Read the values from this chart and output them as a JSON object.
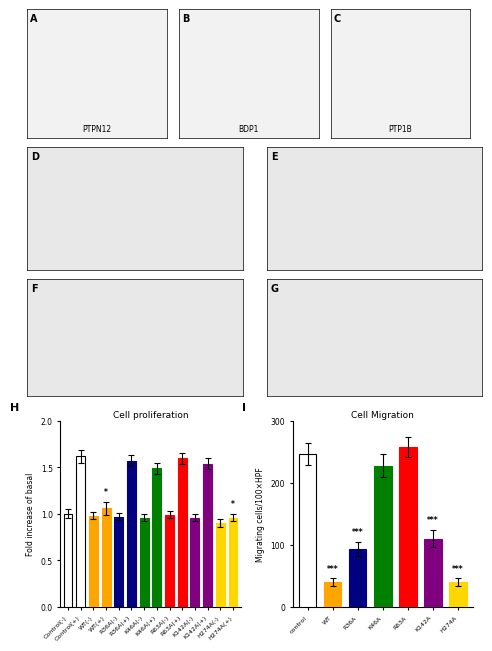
{
  "panel_H": {
    "title": "Cell proliferation",
    "ylabel": "Fold increase of basal",
    "ylim": [
      0,
      2.0
    ],
    "yticks": [
      0.0,
      0.5,
      1.0,
      1.5,
      2.0
    ],
    "categories": [
      "Control(-)",
      "Control(+)",
      "WT(-)",
      "WT(+)",
      "R36A(-)",
      "R36A(+)",
      "K46A(-)",
      "K46A(+)",
      "R63A(-)",
      "R63A(+)",
      "K142A(-)",
      "K142A(+)",
      "H274A(-)",
      "H274A(+)"
    ],
    "values": [
      1.0,
      1.62,
      0.98,
      1.06,
      0.97,
      1.57,
      0.96,
      1.49,
      0.99,
      1.6,
      0.96,
      1.54,
      0.9,
      0.96
    ],
    "errors": [
      0.05,
      0.07,
      0.04,
      0.07,
      0.04,
      0.06,
      0.04,
      0.06,
      0.04,
      0.06,
      0.04,
      0.06,
      0.04,
      0.04
    ],
    "colors": [
      "white",
      "white",
      "orange",
      "orange",
      "navy",
      "navy",
      "green",
      "green",
      "red",
      "red",
      "purple",
      "purple",
      "gold",
      "gold"
    ],
    "edge_colors": [
      "black",
      "black",
      "orange",
      "orange",
      "navy",
      "navy",
      "green",
      "green",
      "red",
      "red",
      "purple",
      "purple",
      "gold",
      "gold"
    ],
    "significance": [
      "",
      "",
      "",
      "*",
      "",
      "",
      "",
      "",
      "",
      "",
      "",
      "",
      "",
      "*"
    ],
    "label": "H"
  },
  "panel_I": {
    "title": "Cell Migration",
    "ylabel": "Migrating cells/100×HPF",
    "ylim": [
      0,
      300
    ],
    "yticks": [
      0,
      100,
      200,
      300
    ],
    "categories": [
      "control",
      "WT",
      "R36A",
      "K46A",
      "R63A",
      "K142A",
      "H274A"
    ],
    "values": [
      247,
      40,
      93,
      228,
      258,
      110,
      40
    ],
    "errors": [
      18,
      6,
      12,
      18,
      16,
      14,
      6
    ],
    "colors": [
      "white",
      "orange",
      "navy",
      "green",
      "red",
      "purple",
      "gold"
    ],
    "edge_colors": [
      "black",
      "orange",
      "navy",
      "green",
      "red",
      "purple",
      "gold"
    ],
    "significance": [
      "",
      "***",
      "***",
      "",
      "",
      "***",
      "***"
    ],
    "label": "I"
  },
  "struct_panels": {
    "labels": [
      "A",
      "B",
      "C"
    ],
    "names": [
      "PTPN12",
      "BDP1",
      "PTP1B"
    ],
    "bg_color": "#f2f2f2"
  },
  "gel_panels_row1": {
    "labels": [
      "D",
      "E"
    ],
    "bg_color": "#e8e8e8"
  },
  "gel_panels_row2": {
    "labels": [
      "F",
      "G"
    ],
    "bg_color": "#e8e8e8"
  },
  "figure_bg": "#ffffff"
}
